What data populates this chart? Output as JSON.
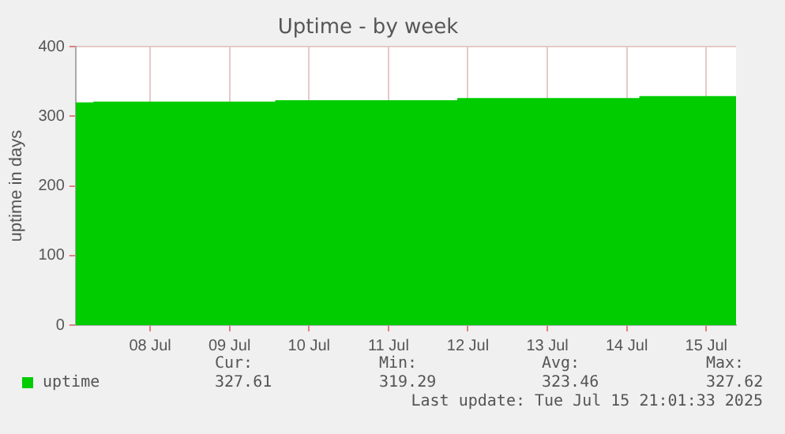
{
  "chart_data": {
    "type": "area",
    "title": "Uptime - by week",
    "ylabel": "uptime in days",
    "x": [
      "2025-07-07T13:30",
      "2025-07-07T19:00",
      "2025-07-07T19:00",
      "2025-07-10T02:00",
      "2025-07-10T02:00",
      "2025-07-12T09:00",
      "2025-07-12T09:00",
      "2025-07-14T16:00",
      "2025-07-14T16:00",
      "2025-07-15T21:00"
    ],
    "series": [
      {
        "name": "uptime",
        "color": "#00cc00",
        "values": [
          319,
          319,
          320,
          320,
          322,
          322,
          325,
          325,
          328,
          328
        ]
      }
    ],
    "xlim": [
      "2025-07-07T13:30",
      "2025-07-15T21:00"
    ],
    "xticks": [
      {
        "value": "2025-07-08T12:00",
        "label": "08 Jul"
      },
      {
        "value": "2025-07-09T12:00",
        "label": "09 Jul"
      },
      {
        "value": "2025-07-10T12:00",
        "label": "10 Jul"
      },
      {
        "value": "2025-07-11T12:00",
        "label": "11 Jul"
      },
      {
        "value": "2025-07-12T12:00",
        "label": "12 Jul"
      },
      {
        "value": "2025-07-13T12:00",
        "label": "13 Jul"
      },
      {
        "value": "2025-07-14T12:00",
        "label": "14 Jul"
      },
      {
        "value": "2025-07-15T12:00",
        "label": "15 Jul"
      }
    ],
    "ylim": [
      0,
      400
    ],
    "yticks": [
      0,
      100,
      200,
      300,
      400
    ],
    "grid": true,
    "legend": "bottom left",
    "marker": "none",
    "annotations": [
      "Cur:",
      "Min:",
      "Avg:",
      "Max:",
      "327.61",
      "319.29",
      "323.46",
      "327.62",
      "Last update: Tue Jul 15 21:01:33 2025"
    ]
  }
}
